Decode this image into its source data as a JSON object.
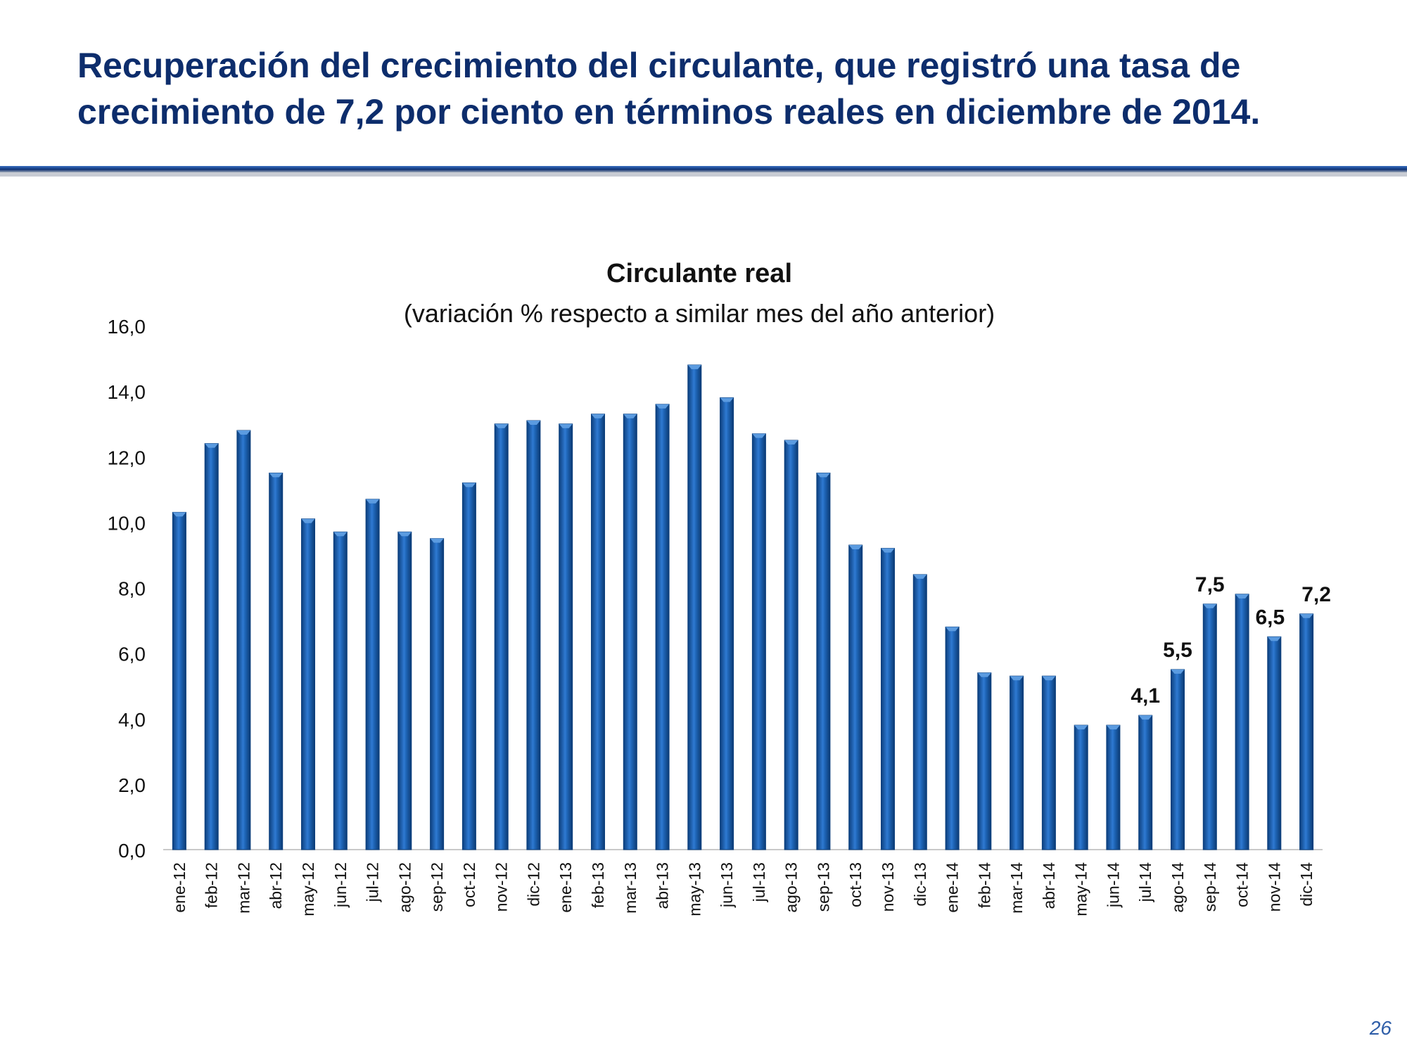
{
  "slide": {
    "title_line1": "Recuperación del crecimiento del circulante, que registró una tasa de",
    "title_line2": "crecimiento de 7,2 por ciento en términos reales en diciembre de 2014.",
    "page_number": "26"
  },
  "colors": {
    "title": "#0d2d6c",
    "bar": "#1a5fa8",
    "bar_dark": "#0c3f7d",
    "bar_light": "#5b9be0",
    "rule": "#1f4e9a",
    "page_number": "#2f5ea8"
  },
  "chart_data": {
    "type": "bar",
    "title": "Circulante real",
    "subtitle": "(variación % respecto a similar mes del año anterior)",
    "xlabel": "",
    "ylabel": "",
    "ylim": [
      0,
      16
    ],
    "yticks": [
      0,
      2,
      4,
      6,
      8,
      10,
      12,
      14,
      16
    ],
    "ytick_labels": [
      "0,0",
      "2,0",
      "4,0",
      "6,0",
      "8,0",
      "10,0",
      "12,0",
      "14,0",
      "16,0"
    ],
    "categories": [
      "ene-12",
      "feb-12",
      "mar-12",
      "abr-12",
      "may-12",
      "jun-12",
      "jul-12",
      "ago-12",
      "sep-12",
      "oct-12",
      "nov-12",
      "dic-12",
      "ene-13",
      "feb-13",
      "mar-13",
      "abr-13",
      "may-13",
      "jun-13",
      "jul-13",
      "ago-13",
      "sep-13",
      "oct-13",
      "nov-13",
      "dic-13",
      "ene-14",
      "feb-14",
      "mar-14",
      "abr-14",
      "may-14",
      "jun-14",
      "jul-14",
      "ago-14",
      "sep-14",
      "oct-14",
      "nov-14",
      "dic-14"
    ],
    "values": [
      10.3,
      12.4,
      12.8,
      11.5,
      10.1,
      9.7,
      10.7,
      9.7,
      9.5,
      11.2,
      13.0,
      13.1,
      13.0,
      13.3,
      13.3,
      13.6,
      14.8,
      13.8,
      12.7,
      12.5,
      11.5,
      9.3,
      9.2,
      8.4,
      6.8,
      5.4,
      5.3,
      5.3,
      3.8,
      3.8,
      4.1,
      5.5,
      7.5,
      7.8,
      6.5,
      7.2
    ],
    "data_labels": [
      {
        "category": "jul-14",
        "text": "4,1"
      },
      {
        "category": "ago-14",
        "text": "5,5"
      },
      {
        "category": "sep-14",
        "text": "7,5"
      },
      {
        "category": "nov-14",
        "text": "6,5"
      },
      {
        "category": "dic-14",
        "text": "7,2"
      }
    ],
    "grid": false,
    "legend": "none"
  }
}
